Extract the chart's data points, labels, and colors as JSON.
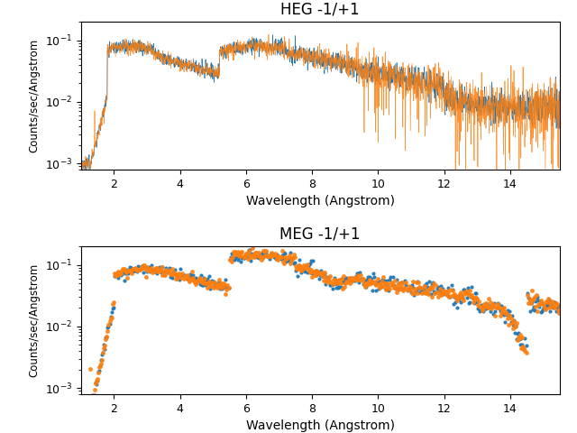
{
  "title_heg": "HEG -1/+1",
  "title_meg": "MEG -1/+1",
  "xlabel": "Wavelength (Angstrom)",
  "ylabel": "Counts/sec/Angstrom",
  "xlim": [
    1.0,
    15.5
  ],
  "ylim": [
    0.0008,
    0.2
  ],
  "color_blue": "#1f77b4",
  "color_orange": "#ff7f0e",
  "seed": 42
}
